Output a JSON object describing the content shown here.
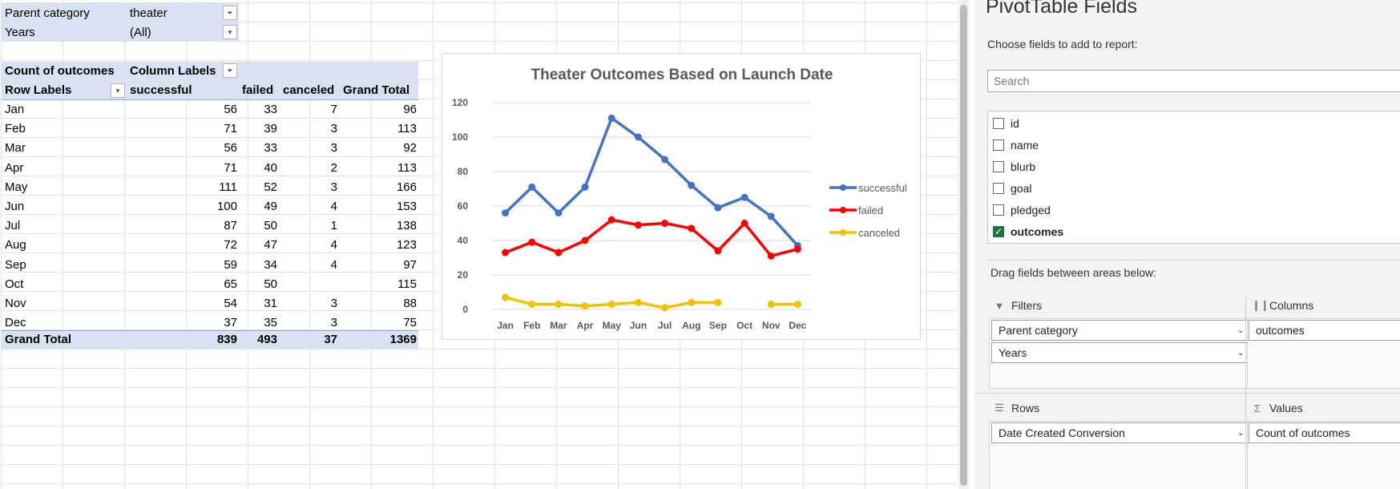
{
  "filters": [
    {
      "label": "Parent category",
      "value": "theater"
    },
    {
      "label": "Years",
      "value": "(All)"
    }
  ],
  "pivot": {
    "value_label": "Count of outcomes",
    "column_labels": "Column Labels",
    "row_labels": "Row Labels",
    "headers": [
      "successful",
      "failed",
      "canceled",
      "Grand Total"
    ],
    "rows": [
      {
        "month": "Jan",
        "successful": "56",
        "failed": "33",
        "canceled": "7",
        "total": "96"
      },
      {
        "month": "Feb",
        "successful": "71",
        "failed": "39",
        "canceled": "3",
        "total": "113"
      },
      {
        "month": "Mar",
        "successful": "56",
        "failed": "33",
        "canceled": "3",
        "total": "92"
      },
      {
        "month": "Apr",
        "successful": "71",
        "failed": "40",
        "canceled": "2",
        "total": "113"
      },
      {
        "month": "May",
        "successful": "111",
        "failed": "52",
        "canceled": "3",
        "total": "166"
      },
      {
        "month": "Jun",
        "successful": "100",
        "failed": "49",
        "canceled": "4",
        "total": "153"
      },
      {
        "month": "Jul",
        "successful": "87",
        "failed": "50",
        "canceled": "1",
        "total": "138"
      },
      {
        "month": "Aug",
        "successful": "72",
        "failed": "47",
        "canceled": "4",
        "total": "123"
      },
      {
        "month": "Sep",
        "successful": "59",
        "failed": "34",
        "canceled": "4",
        "total": "97"
      },
      {
        "month": "Oct",
        "successful": "65",
        "failed": "50",
        "canceled": "",
        "total": "115"
      },
      {
        "month": "Nov",
        "successful": "54",
        "failed": "31",
        "canceled": "3",
        "total": "88"
      },
      {
        "month": "Dec",
        "successful": "37",
        "failed": "35",
        "canceled": "3",
        "total": "75"
      }
    ],
    "grand_total": {
      "label": "Grand Total",
      "successful": "839",
      "failed": "493",
      "canceled": "37",
      "total": "1369"
    }
  },
  "chart_data": {
    "type": "line",
    "title": "Theater Outcomes Based on Launch Date",
    "categories": [
      "Jan",
      "Feb",
      "Mar",
      "Apr",
      "May",
      "Jun",
      "Jul",
      "Aug",
      "Sep",
      "Oct",
      "Nov",
      "Dec"
    ],
    "series": [
      {
        "name": "successful",
        "color": "#4472c4",
        "values": [
          56,
          71,
          56,
          71,
          111,
          100,
          87,
          72,
          59,
          65,
          54,
          37
        ]
      },
      {
        "name": "failed",
        "color": "#ff0000",
        "values": [
          33,
          39,
          33,
          40,
          52,
          49,
          50,
          47,
          34,
          50,
          31,
          35
        ]
      },
      {
        "name": "canceled",
        "color": "#f5c000",
        "values": [
          7,
          3,
          3,
          2,
          3,
          4,
          1,
          4,
          4,
          null,
          3,
          3
        ]
      }
    ],
    "ylim": [
      0,
      120
    ],
    "yticks": [
      0,
      20,
      40,
      60,
      80,
      100,
      120
    ],
    "grid": true,
    "legend": "right"
  },
  "pane": {
    "title": "PivotTable Fields",
    "choose_label": "Choose fields to add to report:",
    "search_placeholder": "Search",
    "fields": [
      {
        "name": "id",
        "checked": false
      },
      {
        "name": "name",
        "checked": false
      },
      {
        "name": "blurb",
        "checked": false
      },
      {
        "name": "goal",
        "checked": false
      },
      {
        "name": "pledged",
        "checked": false
      },
      {
        "name": "outcomes",
        "checked": true
      }
    ],
    "drag_label": "Drag fields between areas below:",
    "areas": {
      "filters": {
        "label": "Filters",
        "items": [
          "Parent category",
          "Years"
        ]
      },
      "columns": {
        "label": "Columns",
        "items": [
          "outcomes"
        ]
      },
      "rows": {
        "label": "Rows",
        "items": [
          "Date Created Conversion"
        ]
      },
      "values": {
        "label": "Values",
        "items": [
          "Count of outcomes"
        ]
      }
    }
  }
}
